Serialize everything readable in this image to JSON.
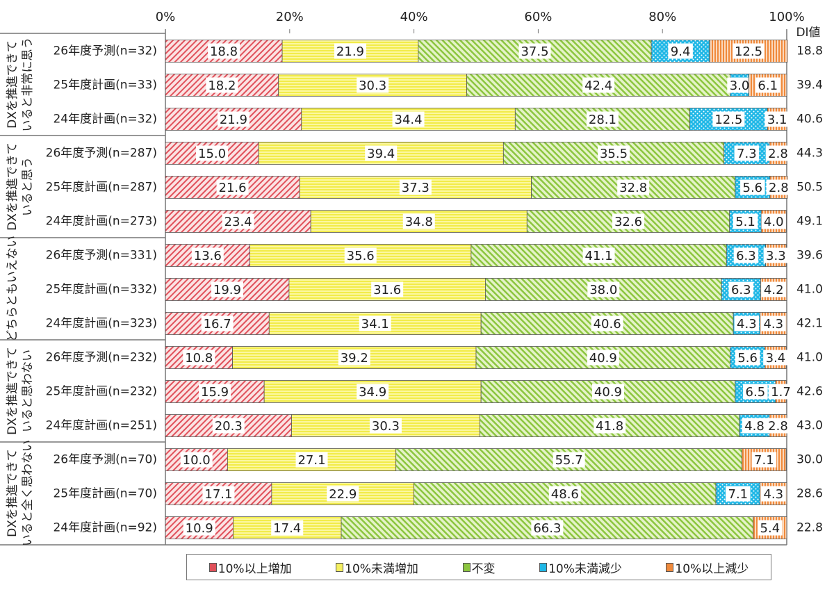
{
  "chart_data": {
    "type": "bar",
    "orientation": "horizontal",
    "stacked": true,
    "xlim": [
      0,
      100
    ],
    "x_ticks": [
      "0%",
      "20%",
      "40%",
      "60%",
      "80%",
      "100%"
    ],
    "di_header": "DI値",
    "legend_position": "bottom",
    "series": [
      {
        "name": "10%以上増加",
        "color": "#e0505a",
        "pattern": "diagonal-hatch"
      },
      {
        "name": "10%未満増加",
        "color": "#f5f060",
        "pattern": "horizontal-stripes"
      },
      {
        "name": "不変",
        "color": "#8cc63f",
        "pattern": "diagonal-stripes"
      },
      {
        "name": "10%未満減少",
        "color": "#1fb7e6",
        "pattern": "dots"
      },
      {
        "name": "10%以上減少",
        "color": "#f08a3c",
        "pattern": "vertical-stripes"
      }
    ],
    "groups": [
      {
        "label": [
          "DXを推進できて",
          "いると非常に思う"
        ],
        "rows": [
          {
            "label": "26年度予測(n=32)",
            "values": [
              18.8,
              21.9,
              37.5,
              9.4,
              12.5
            ],
            "di": "18.8"
          },
          {
            "label": "25年度計画(n=33)",
            "values": [
              18.2,
              30.3,
              42.4,
              3.0,
              6.1
            ],
            "di": "39.4"
          },
          {
            "label": "24年度計画(n=32)",
            "values": [
              21.9,
              34.4,
              28.1,
              12.5,
              3.1
            ],
            "di": "40.6"
          }
        ]
      },
      {
        "label": [
          "DXを推進できて",
          "いると思う"
        ],
        "rows": [
          {
            "label": "26年度予測(n=287)",
            "values": [
              15.0,
              39.4,
              35.5,
              7.3,
              2.8
            ],
            "di": "44.3"
          },
          {
            "label": "25年度計画(n=287)",
            "values": [
              21.6,
              37.3,
              32.8,
              5.6,
              2.8
            ],
            "di": "50.5"
          },
          {
            "label": "24年度計画(n=273)",
            "values": [
              23.4,
              34.8,
              32.6,
              5.1,
              4.0
            ],
            "di": "49.1"
          }
        ]
      },
      {
        "label": [
          "どちらともいえない"
        ],
        "rows": [
          {
            "label": "26年度予測(n=331)",
            "values": [
              13.6,
              35.6,
              41.1,
              6.3,
              3.3
            ],
            "di": "39.6"
          },
          {
            "label": "25年度計画(n=332)",
            "values": [
              19.9,
              31.6,
              38.0,
              6.3,
              4.2
            ],
            "di": "41.0"
          },
          {
            "label": "24年度計画(n=323)",
            "values": [
              16.7,
              34.1,
              40.6,
              4.3,
              4.3
            ],
            "di": "42.1"
          }
        ]
      },
      {
        "label": [
          "DXを推進できて",
          "いると思わない"
        ],
        "rows": [
          {
            "label": "26年度予測(n=232)",
            "values": [
              10.8,
              39.2,
              40.9,
              5.6,
              3.4
            ],
            "di": "41.0"
          },
          {
            "label": "25年度計画(n=232)",
            "values": [
              15.9,
              34.9,
              40.9,
              6.5,
              1.7
            ],
            "di": "42.6"
          },
          {
            "label": "24年度計画(n=251)",
            "values": [
              20.3,
              30.3,
              41.8,
              4.8,
              2.8
            ],
            "di": "43.0"
          }
        ]
      },
      {
        "label": [
          "DXを推進できて",
          "いると全く思わない"
        ],
        "rows": [
          {
            "label": "26年度予測(n=70)",
            "values": [
              10.0,
              27.1,
              55.7,
              0,
              7.1
            ],
            "di": "30.0"
          },
          {
            "label": "25年度計画(n=70)",
            "values": [
              17.1,
              22.9,
              48.6,
              7.1,
              4.3
            ],
            "di": "28.6"
          },
          {
            "label": "24年度計画(n=92)",
            "values": [
              10.9,
              17.4,
              66.3,
              0,
              5.4
            ],
            "di": "22.8"
          }
        ]
      }
    ]
  }
}
